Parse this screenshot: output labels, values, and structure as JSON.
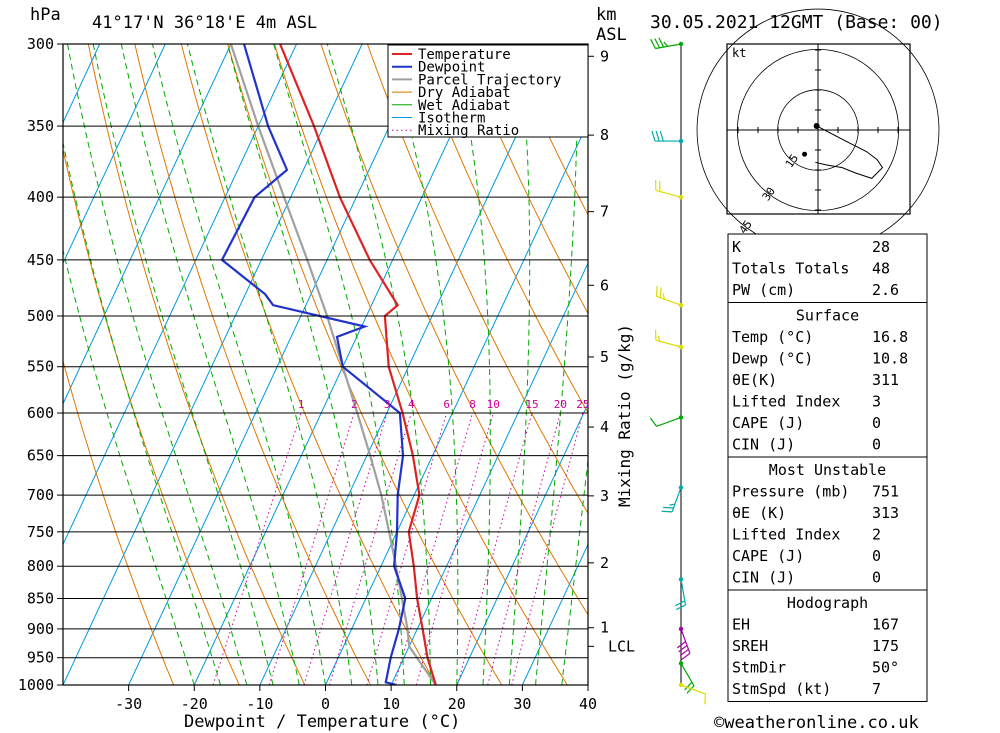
{
  "header": {
    "pressure_unit": "hPa",
    "location": "41°17'N  36°18'E  4m  ASL",
    "km_unit": "km",
    "asl_unit": "ASL",
    "datetime": "30.05.2021  12GMT  (Base: 00)"
  },
  "footer": {
    "copyright": "©weatheronline.co.uk"
  },
  "colors": {
    "temperature": "#dd2222",
    "dewpoint": "#2233cc",
    "parcel": "#a0a0a0",
    "dry_adiabat": "#dd7700",
    "wet_adiabat": "#00aa00",
    "isotherm": "#0099dd",
    "mixing_ratio": "#cc0099"
  },
  "chart_data": {
    "type": "line",
    "title": "",
    "xlabel": "Dewpoint / Temperature (°C)",
    "ylabel": "hPa",
    "right_label": "Mixing Ratio (g/kg)",
    "xlim": [
      -40,
      40
    ],
    "ylim": [
      1000,
      300
    ],
    "y_scale": "log",
    "skew": true,
    "x_ticks": [
      -30,
      -20,
      -10,
      0,
      10,
      20,
      30,
      40
    ],
    "pressure_ticks": [
      300,
      350,
      400,
      450,
      500,
      550,
      600,
      650,
      700,
      750,
      800,
      850,
      900,
      950,
      1000
    ],
    "km_ticks": [
      {
        "label": "9",
        "p": 307
      },
      {
        "label": "8",
        "p": 356
      },
      {
        "label": "7",
        "p": 411
      },
      {
        "label": "6",
        "p": 472
      },
      {
        "label": "5",
        "p": 540
      },
      {
        "label": "4",
        "p": 616
      },
      {
        "label": "3",
        "p": 701
      },
      {
        "label": "2",
        "p": 795
      },
      {
        "label": "1",
        "p": 898
      }
    ],
    "lcl": {
      "label": "LCL",
      "p": 930
    },
    "mixing_ratio_labels": [
      "1",
      "2",
      "3",
      "4",
      "6",
      "8",
      "10",
      "15",
      "20",
      "25"
    ],
    "legend": [
      {
        "name": "Temperature",
        "style": "temperature"
      },
      {
        "name": "Dewpoint",
        "style": "dewpoint"
      },
      {
        "name": "Parcel Trajectory",
        "style": "parcel"
      },
      {
        "name": "Dry Adiabat",
        "style": "dry_adiabat"
      },
      {
        "name": "Wet Adiabat",
        "style": "wet_adiabat"
      },
      {
        "name": "Isotherm",
        "style": "isotherm"
      },
      {
        "name": "Mixing Ratio",
        "style": "mixing_ratio"
      }
    ],
    "legend_position": "top-right",
    "series": [
      {
        "name": "Temperature",
        "points": [
          [
            1000,
            16.8
          ],
          [
            950,
            13.6
          ],
          [
            900,
            10.8
          ],
          [
            850,
            7.8
          ],
          [
            800,
            5.0
          ],
          [
            750,
            1.8
          ],
          [
            700,
            0.8
          ],
          [
            650,
            -3.0
          ],
          [
            600,
            -7.6
          ],
          [
            550,
            -13.0
          ],
          [
            500,
            -17.2
          ],
          [
            490,
            -16.0
          ],
          [
            450,
            -23.5
          ],
          [
            400,
            -32.5
          ],
          [
            350,
            -41.5
          ],
          [
            300,
            -52.5
          ]
        ]
      },
      {
        "name": "Dewpoint",
        "points": [
          [
            1000,
            10.8
          ],
          [
            995,
            9.0
          ],
          [
            950,
            8.0
          ],
          [
            900,
            7.2
          ],
          [
            850,
            6.0
          ],
          [
            800,
            2.0
          ],
          [
            750,
            0.0
          ],
          [
            700,
            -2.5
          ],
          [
            650,
            -4.5
          ],
          [
            600,
            -8.0
          ],
          [
            550,
            -20.0
          ],
          [
            520,
            -23.0
          ],
          [
            510,
            -19.5
          ],
          [
            490,
            -35.0
          ],
          [
            480,
            -37.0
          ],
          [
            450,
            -46.0
          ],
          [
            400,
            -45.5
          ],
          [
            380,
            -42.5
          ],
          [
            350,
            -48.5
          ],
          [
            300,
            -58.0
          ]
        ]
      },
      {
        "name": "Parcel Trajectory",
        "points": [
          [
            1000,
            16.8
          ],
          [
            950,
            12.0
          ],
          [
            930,
            10.0
          ],
          [
            900,
            8.5
          ],
          [
            850,
            5.5
          ],
          [
            800,
            2.3
          ],
          [
            750,
            -1.2
          ],
          [
            700,
            -5.0
          ],
          [
            650,
            -9.5
          ],
          [
            600,
            -14.5
          ],
          [
            550,
            -20.0
          ],
          [
            500,
            -26.0
          ],
          [
            450,
            -33.0
          ],
          [
            400,
            -41.0
          ],
          [
            350,
            -50.0
          ],
          [
            300,
            -60.0
          ]
        ]
      }
    ],
    "mixing_ratio_values": [
      1,
      2,
      3,
      4,
      6,
      8,
      10,
      15,
      20,
      25
    ]
  },
  "wind_profile": {
    "p_top": 300,
    "p_bottom": 1000,
    "levels": [
      {
        "p": 300,
        "dir": 260,
        "spd": 35,
        "color": "#00aa00"
      },
      {
        "p": 360,
        "dir": 270,
        "spd": 30,
        "color": "#00aaaa"
      },
      {
        "p": 400,
        "dir": 285,
        "spd": 20,
        "color": "#dddd00"
      },
      {
        "p": 490,
        "dir": 290,
        "spd": 25,
        "color": "#dddd00"
      },
      {
        "p": 530,
        "dir": 285,
        "spd": 15,
        "color": "#dddd00"
      },
      {
        "p": 605,
        "dir": 250,
        "spd": 10,
        "color": "#00aa00"
      },
      {
        "p": 690,
        "dir": 200,
        "spd": 25,
        "color": "#00aaaa"
      },
      {
        "p": 820,
        "dir": 170,
        "spd": 20,
        "color": "#00aaaa"
      },
      {
        "p": 900,
        "dir": 160,
        "spd": 40,
        "color": "#aa00aa"
      },
      {
        "p": 960,
        "dir": 150,
        "spd": 20,
        "color": "#00aa00"
      },
      {
        "p": 1000,
        "dir": 110,
        "spd": 10,
        "color": "#dddd00"
      }
    ]
  },
  "hodograph": {
    "unit": "kt",
    "ring_labels": [
      "15",
      "30",
      "45"
    ],
    "max_kt": 50,
    "trace": [
      [
        -0.5,
        1.5
      ],
      [
        -1,
        2.5
      ],
      [
        0.5,
        1.0
      ],
      [
        12,
        -5
      ],
      [
        18,
        -8
      ],
      [
        22,
        -11
      ],
      [
        24,
        -14
      ],
      [
        20,
        -18
      ],
      [
        14,
        -16
      ],
      [
        9,
        -14
      ],
      [
        3,
        -13
      ],
      [
        -1,
        -12
      ]
    ],
    "storm_marker": [
      -5,
      -9
    ]
  },
  "indices": {
    "general": [
      {
        "label": "K",
        "value": "28"
      },
      {
        "label": "Totals Totals",
        "value": "48"
      },
      {
        "label": "PW (cm)",
        "value": "2.6"
      }
    ],
    "surface": {
      "title": "Surface",
      "rows": [
        {
          "label": "Temp (°C)",
          "value": "16.8"
        },
        {
          "label": "Dewp (°C)",
          "value": "10.8"
        },
        {
          "label": "θE(K)",
          "value": "311"
        },
        {
          "label": "Lifted Index",
          "value": "3"
        },
        {
          "label": "CAPE (J)",
          "value": "0"
        },
        {
          "label": "CIN (J)",
          "value": "0"
        }
      ]
    },
    "most_unstable": {
      "title": "Most Unstable",
      "rows": [
        {
          "label": "Pressure (mb)",
          "value": "751"
        },
        {
          "label": "θE (K)",
          "value": "313"
        },
        {
          "label": "Lifted Index",
          "value": "2"
        },
        {
          "label": "CAPE (J)",
          "value": "0"
        },
        {
          "label": "CIN (J)",
          "value": "0"
        }
      ]
    },
    "hodograph_box": {
      "title": "Hodograph",
      "rows": [
        {
          "label": "EH",
          "value": "167"
        },
        {
          "label": "SREH",
          "value": "175"
        },
        {
          "label": "StmDir",
          "value": "50°"
        },
        {
          "label": "StmSpd (kt)",
          "value": "7"
        }
      ]
    }
  }
}
